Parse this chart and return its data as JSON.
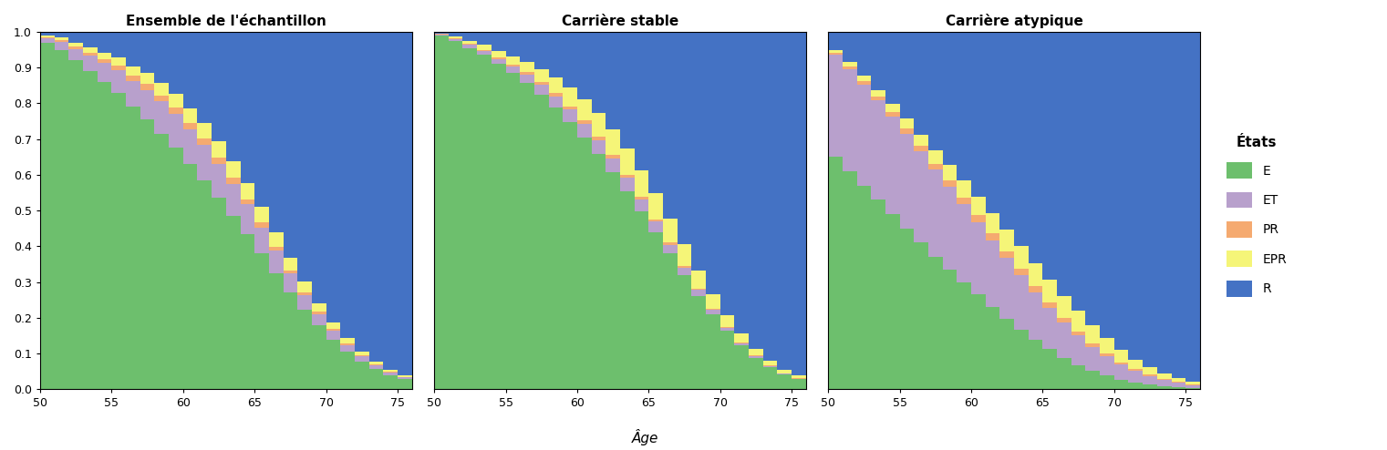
{
  "ages": [
    50,
    51,
    52,
    53,
    54,
    55,
    56,
    57,
    58,
    59,
    60,
    61,
    62,
    63,
    64,
    65,
    66,
    67,
    68,
    69,
    70,
    71,
    72,
    73,
    74,
    75
  ],
  "panel_titles": [
    "Ensemble de l'échantillon",
    "Carrière stable",
    "Carrière atypique"
  ],
  "legend_title": "États",
  "legend_labels": [
    "E",
    "ET",
    "PR",
    "EPR",
    "R"
  ],
  "colors": [
    "#6dbf6d",
    "#b8a0cc",
    "#f5aa70",
    "#f5f578",
    "#4472c4"
  ],
  "xlabel": "Âge",
  "panels": {
    "ensemble": {
      "E": [
        0.97,
        0.95,
        0.92,
        0.89,
        0.86,
        0.83,
        0.79,
        0.755,
        0.715,
        0.675,
        0.63,
        0.585,
        0.535,
        0.485,
        0.435,
        0.38,
        0.325,
        0.272,
        0.222,
        0.178,
        0.138,
        0.105,
        0.078,
        0.057,
        0.04,
        0.028
      ],
      "ET": [
        0.012,
        0.022,
        0.032,
        0.043,
        0.053,
        0.063,
        0.073,
        0.083,
        0.09,
        0.095,
        0.098,
        0.098,
        0.095,
        0.09,
        0.082,
        0.073,
        0.062,
        0.052,
        0.042,
        0.033,
        0.026,
        0.019,
        0.014,
        0.01,
        0.007,
        0.005
      ],
      "PR": [
        0.003,
        0.005,
        0.007,
        0.009,
        0.011,
        0.013,
        0.015,
        0.016,
        0.017,
        0.018,
        0.018,
        0.018,
        0.017,
        0.016,
        0.015,
        0.013,
        0.011,
        0.009,
        0.008,
        0.006,
        0.005,
        0.004,
        0.003,
        0.002,
        0.002,
        0.001
      ],
      "EPR": [
        0.005,
        0.008,
        0.011,
        0.014,
        0.018,
        0.022,
        0.026,
        0.03,
        0.034,
        0.038,
        0.041,
        0.044,
        0.046,
        0.047,
        0.046,
        0.044,
        0.04,
        0.036,
        0.03,
        0.024,
        0.019,
        0.015,
        0.011,
        0.008,
        0.006,
        0.004
      ],
      "R": [
        0.01,
        0.015,
        0.03,
        0.044,
        0.058,
        0.072,
        0.096,
        0.116,
        0.144,
        0.174,
        0.213,
        0.255,
        0.307,
        0.362,
        0.422,
        0.49,
        0.562,
        0.631,
        0.698,
        0.759,
        0.812,
        0.857,
        0.894,
        0.923,
        0.945,
        0.962
      ]
    },
    "stable": {
      "E": [
        0.99,
        0.975,
        0.955,
        0.935,
        0.91,
        0.885,
        0.858,
        0.825,
        0.789,
        0.748,
        0.705,
        0.658,
        0.608,
        0.555,
        0.498,
        0.44,
        0.38,
        0.32,
        0.262,
        0.21,
        0.163,
        0.122,
        0.088,
        0.062,
        0.042,
        0.028
      ],
      "ET": [
        0.003,
        0.005,
        0.008,
        0.011,
        0.014,
        0.018,
        0.022,
        0.026,
        0.03,
        0.034,
        0.037,
        0.038,
        0.038,
        0.036,
        0.033,
        0.029,
        0.024,
        0.02,
        0.016,
        0.012,
        0.009,
        0.007,
        0.005,
        0.003,
        0.002,
        0.002
      ],
      "PR": [
        0.001,
        0.002,
        0.003,
        0.004,
        0.005,
        0.006,
        0.007,
        0.008,
        0.009,
        0.01,
        0.01,
        0.01,
        0.01,
        0.009,
        0.008,
        0.007,
        0.006,
        0.005,
        0.004,
        0.003,
        0.003,
        0.002,
        0.001,
        0.001,
        0.001,
        0.001
      ],
      "EPR": [
        0.002,
        0.005,
        0.009,
        0.013,
        0.018,
        0.023,
        0.03,
        0.037,
        0.044,
        0.052,
        0.06,
        0.067,
        0.071,
        0.074,
        0.074,
        0.072,
        0.067,
        0.06,
        0.051,
        0.042,
        0.033,
        0.025,
        0.019,
        0.014,
        0.01,
        0.007
      ],
      "R": [
        0.004,
        0.013,
        0.025,
        0.037,
        0.053,
        0.068,
        0.083,
        0.104,
        0.128,
        0.156,
        0.188,
        0.227,
        0.273,
        0.326,
        0.387,
        0.452,
        0.523,
        0.595,
        0.667,
        0.733,
        0.792,
        0.844,
        0.887,
        0.92,
        0.945,
        0.962
      ]
    },
    "atypique": {
      "E": [
        0.65,
        0.61,
        0.57,
        0.53,
        0.49,
        0.45,
        0.41,
        0.37,
        0.335,
        0.3,
        0.265,
        0.23,
        0.198,
        0.167,
        0.138,
        0.112,
        0.088,
        0.068,
        0.051,
        0.038,
        0.027,
        0.019,
        0.013,
        0.009,
        0.006,
        0.004
      ],
      "ET": [
        0.285,
        0.285,
        0.282,
        0.278,
        0.272,
        0.265,
        0.255,
        0.244,
        0.232,
        0.218,
        0.203,
        0.187,
        0.17,
        0.152,
        0.134,
        0.116,
        0.098,
        0.082,
        0.067,
        0.054,
        0.042,
        0.032,
        0.024,
        0.017,
        0.012,
        0.008
      ],
      "PR": [
        0.005,
        0.007,
        0.009,
        0.011,
        0.013,
        0.015,
        0.016,
        0.017,
        0.018,
        0.019,
        0.019,
        0.019,
        0.018,
        0.017,
        0.016,
        0.014,
        0.013,
        0.011,
        0.009,
        0.008,
        0.006,
        0.005,
        0.004,
        0.003,
        0.002,
        0.002
      ],
      "EPR": [
        0.01,
        0.013,
        0.016,
        0.019,
        0.023,
        0.027,
        0.032,
        0.037,
        0.042,
        0.047,
        0.052,
        0.057,
        0.061,
        0.064,
        0.065,
        0.065,
        0.062,
        0.058,
        0.051,
        0.044,
        0.035,
        0.027,
        0.02,
        0.015,
        0.011,
        0.007
      ],
      "R": [
        0.05,
        0.085,
        0.123,
        0.162,
        0.202,
        0.243,
        0.287,
        0.332,
        0.373,
        0.416,
        0.461,
        0.507,
        0.553,
        0.6,
        0.647,
        0.693,
        0.739,
        0.781,
        0.822,
        0.86,
        0.89,
        0.917,
        0.939,
        0.956,
        0.969,
        0.979
      ]
    }
  },
  "background_color": "#dcdce8",
  "figsize": [
    15.21,
    4.94
  ],
  "dpi": 100
}
